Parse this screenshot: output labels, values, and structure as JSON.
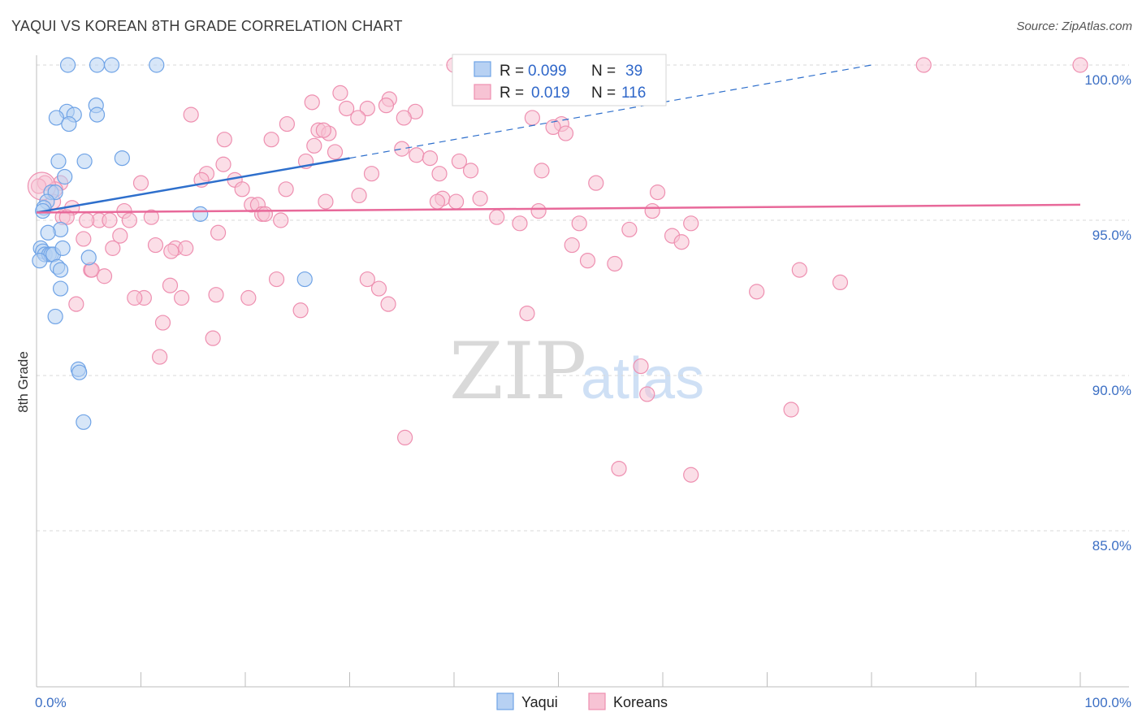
{
  "title": "YAQUI VS KOREAN 8TH GRADE CORRELATION CHART",
  "source": "Source: ZipAtlas.com",
  "colors": {
    "yaqui": "#6fa3e6",
    "yaqui_fill": "#b7d1f3",
    "korean": "#ee8fb0",
    "korean_fill": "#f7c3d4",
    "yaqui_line": "#2e6fcc",
    "korean_line": "#e8699a",
    "grid": "#d8d8d8"
  },
  "legend": {
    "row1": {
      "r_label": "R =",
      "r_value": "0.099",
      "n_label": "N =",
      "n_value": "39"
    },
    "row2": {
      "r_label": "R =",
      "r_value": "0.019",
      "n_label": "N =",
      "n_value": "116"
    }
  },
  "bottom_legend": {
    "yaqui": "Yaqui",
    "koreans": "Koreans"
  },
  "watermark": {
    "zip": "ZIP",
    "atlas": "atlas"
  },
  "chart_data": {
    "type": "scatter",
    "title": "YAQUI VS KOREAN 8TH GRADE CORRELATION CHART",
    "xlabel": "",
    "ylabel": "8th Grade",
    "xlim": [
      0,
      100
    ],
    "ylim": [
      80.5,
      100.8
    ],
    "x_tick_labels": [
      "0.0%",
      "100.0%"
    ],
    "y_ticks": [
      85,
      90,
      95,
      100
    ],
    "y_tick_labels": [
      "85.0%",
      "90.0%",
      "95.0%",
      "100.0%"
    ],
    "series": [
      {
        "name": "Yaqui",
        "points": [
          [
            3.0,
            100
          ],
          [
            5.8,
            100
          ],
          [
            7.2,
            100
          ],
          [
            11.5,
            100
          ],
          [
            5.7,
            98.7
          ],
          [
            2.9,
            98.5
          ],
          [
            5.8,
            98.4
          ],
          [
            3.6,
            98.4
          ],
          [
            1.9,
            98.3
          ],
          [
            3.1,
            98.1
          ],
          [
            8.2,
            97.0
          ],
          [
            2.1,
            96.9
          ],
          [
            4.6,
            96.9
          ],
          [
            2.7,
            96.4
          ],
          [
            1.4,
            95.9
          ],
          [
            1.8,
            95.9
          ],
          [
            1.0,
            95.6
          ],
          [
            0.7,
            95.4
          ],
          [
            0.6,
            95.3
          ],
          [
            15.7,
            95.2
          ],
          [
            2.3,
            94.7
          ],
          [
            1.1,
            94.6
          ],
          [
            0.4,
            94.1
          ],
          [
            0.6,
            94.0
          ],
          [
            0.8,
            93.9
          ],
          [
            1.2,
            93.9
          ],
          [
            1.4,
            93.9
          ],
          [
            1.6,
            93.9
          ],
          [
            2.5,
            94.1
          ],
          [
            0.3,
            93.7
          ],
          [
            5.0,
            93.8
          ],
          [
            2.0,
            93.5
          ],
          [
            2.3,
            93.4
          ],
          [
            2.3,
            92.8
          ],
          [
            25.7,
            93.1
          ],
          [
            1.8,
            91.9
          ],
          [
            4.0,
            90.2
          ],
          [
            4.1,
            90.1
          ],
          [
            4.5,
            88.5
          ]
        ]
      },
      {
        "name": "Koreans",
        "points": [
          [
            40.0,
            100
          ],
          [
            85.0,
            100
          ],
          [
            100.0,
            100
          ],
          [
            29.1,
            99.1
          ],
          [
            33.8,
            98.9
          ],
          [
            26.4,
            98.8
          ],
          [
            33.5,
            98.7
          ],
          [
            31.7,
            98.6
          ],
          [
            29.7,
            98.6
          ],
          [
            36.3,
            98.5
          ],
          [
            14.8,
            98.4
          ],
          [
            30.8,
            98.3
          ],
          [
            35.2,
            98.3
          ],
          [
            47.5,
            98.3
          ],
          [
            24.0,
            98.1
          ],
          [
            50.3,
            98.1
          ],
          [
            49.5,
            98.0
          ],
          [
            27.0,
            97.9
          ],
          [
            28.0,
            97.8
          ],
          [
            27.5,
            97.9
          ],
          [
            50.7,
            97.8
          ],
          [
            22.5,
            97.6
          ],
          [
            18.0,
            97.6
          ],
          [
            26.6,
            97.4
          ],
          [
            35.0,
            97.3
          ],
          [
            28.6,
            97.2
          ],
          [
            36.4,
            97.1
          ],
          [
            37.7,
            97.0
          ],
          [
            40.5,
            96.9
          ],
          [
            25.8,
            96.9
          ],
          [
            17.9,
            96.8
          ],
          [
            41.6,
            96.6
          ],
          [
            48.4,
            96.6
          ],
          [
            32.1,
            96.5
          ],
          [
            38.6,
            96.5
          ],
          [
            16.3,
            96.5
          ],
          [
            19.0,
            96.3
          ],
          [
            15.8,
            96.3
          ],
          [
            10.0,
            96.2
          ],
          [
            53.6,
            96.2
          ],
          [
            2.3,
            96.2
          ],
          [
            0.8,
            96.2
          ],
          [
            1.8,
            96.0
          ],
          [
            19.7,
            96.0
          ],
          [
            23.9,
            96.0
          ],
          [
            59.5,
            95.9
          ],
          [
            30.9,
            95.8
          ],
          [
            38.9,
            95.7
          ],
          [
            42.5,
            95.7
          ],
          [
            40.2,
            95.6
          ],
          [
            27.7,
            95.6
          ],
          [
            20.6,
            95.5
          ],
          [
            38.4,
            95.6
          ],
          [
            1.6,
            95.6
          ],
          [
            21.2,
            95.5
          ],
          [
            3.4,
            95.4
          ],
          [
            8.4,
            95.3
          ],
          [
            48.1,
            95.3
          ],
          [
            59.0,
            95.3
          ],
          [
            21.6,
            95.2
          ],
          [
            21.9,
            95.2
          ],
          [
            2.5,
            95.1
          ],
          [
            2.9,
            95.1
          ],
          [
            11.0,
            95.1
          ],
          [
            44.1,
            95.1
          ],
          [
            6.0,
            95.0
          ],
          [
            7.0,
            95.0
          ],
          [
            8.9,
            95.0
          ],
          [
            23.4,
            95.0
          ],
          [
            4.8,
            95.0
          ],
          [
            52.0,
            94.9
          ],
          [
            46.3,
            94.9
          ],
          [
            62.7,
            94.9
          ],
          [
            56.8,
            94.7
          ],
          [
            17.4,
            94.6
          ],
          [
            60.9,
            94.5
          ],
          [
            4.5,
            94.4
          ],
          [
            8.0,
            94.5
          ],
          [
            61.8,
            94.3
          ],
          [
            51.3,
            94.2
          ],
          [
            11.4,
            94.2
          ],
          [
            13.3,
            94.1
          ],
          [
            14.3,
            94.1
          ],
          [
            7.3,
            94.1
          ],
          [
            12.9,
            94.0
          ],
          [
            52.8,
            93.7
          ],
          [
            55.4,
            93.6
          ],
          [
            5.2,
            93.4
          ],
          [
            5.3,
            93.4
          ],
          [
            6.5,
            93.2
          ],
          [
            73.1,
            93.4
          ],
          [
            31.7,
            93.1
          ],
          [
            23.0,
            93.1
          ],
          [
            77.0,
            93.0
          ],
          [
            12.8,
            92.9
          ],
          [
            32.8,
            92.8
          ],
          [
            17.2,
            92.6
          ],
          [
            69.0,
            92.7
          ],
          [
            10.3,
            92.5
          ],
          [
            9.4,
            92.5
          ],
          [
            20.3,
            92.5
          ],
          [
            13.9,
            92.5
          ],
          [
            3.8,
            92.3
          ],
          [
            33.7,
            92.3
          ],
          [
            25.3,
            92.1
          ],
          [
            47.0,
            92.0
          ],
          [
            12.1,
            91.7
          ],
          [
            16.9,
            91.2
          ],
          [
            11.8,
            90.6
          ],
          [
            57.9,
            90.3
          ],
          [
            58.5,
            89.4
          ],
          [
            72.3,
            88.9
          ],
          [
            35.3,
            88.0
          ],
          [
            55.8,
            87.0
          ],
          [
            62.7,
            86.8
          ],
          [
            0.2,
            96.1
          ]
        ]
      }
    ],
    "trend_lines": [
      {
        "name": "Yaqui",
        "solid": [
          [
            0,
            95.25
          ],
          [
            30,
            97.0
          ]
        ],
        "dashed": [
          [
            30,
            97.0
          ],
          [
            80,
            100.0
          ]
        ]
      },
      {
        "name": "Koreans",
        "solid": [
          [
            0,
            95.25
          ],
          [
            100,
            95.5
          ]
        ]
      }
    ],
    "grid": true,
    "legend_position": "top-center"
  }
}
